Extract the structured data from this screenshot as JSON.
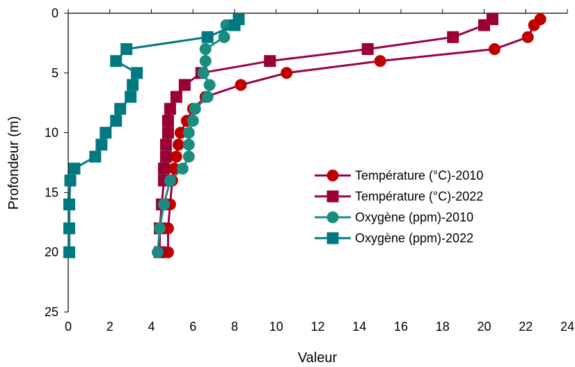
{
  "chart_data": {
    "type": "line",
    "title": "",
    "xlabel": "Valeur",
    "ylabel": "Profondeur (m)",
    "xlim": [
      0,
      24
    ],
    "ylim": [
      0,
      25
    ],
    "y_inverted": true,
    "x_axis_position": "top",
    "x_ticks": [
      "0",
      "2",
      "4",
      "6",
      "8",
      "10",
      "12",
      "14",
      "16",
      "18",
      "20",
      "22",
      "24"
    ],
    "y_ticks": [
      "0",
      "5",
      "10",
      "15",
      "20",
      "25"
    ],
    "grid": false,
    "legend_position": "right",
    "series": [
      {
        "name": "Température (°C)-2010",
        "color": "#C00000",
        "line_color": "#99004C",
        "marker": "circle",
        "points": [
          [
            22.7,
            0.5
          ],
          [
            22.4,
            1
          ],
          [
            22.1,
            2
          ],
          [
            20.5,
            3
          ],
          [
            15.0,
            4
          ],
          [
            10.5,
            5
          ],
          [
            8.3,
            6
          ],
          [
            6.6,
            7
          ],
          [
            6.0,
            8
          ],
          [
            5.7,
            9
          ],
          [
            5.4,
            10
          ],
          [
            5.3,
            11
          ],
          [
            5.2,
            12
          ],
          [
            5.1,
            13
          ],
          [
            5.0,
            14
          ],
          [
            4.9,
            16
          ],
          [
            4.8,
            18
          ],
          [
            4.8,
            20
          ]
        ]
      },
      {
        "name": "Température (°C)-2022",
        "color": "#990033",
        "line_color": "#99004C",
        "marker": "square",
        "points": [
          [
            20.4,
            0.5
          ],
          [
            20.0,
            1
          ],
          [
            18.5,
            2
          ],
          [
            14.4,
            3
          ],
          [
            9.7,
            4
          ],
          [
            6.4,
            5
          ],
          [
            5.6,
            6
          ],
          [
            5.2,
            7
          ],
          [
            4.9,
            8
          ],
          [
            4.8,
            9
          ],
          [
            4.8,
            10
          ],
          [
            4.7,
            11
          ],
          [
            4.7,
            12
          ],
          [
            4.6,
            13
          ],
          [
            4.6,
            14
          ],
          [
            4.5,
            16
          ],
          [
            4.4,
            18
          ],
          [
            4.4,
            20
          ]
        ]
      },
      {
        "name": "Oxygène (ppm)-2010",
        "color": "#1A8C80",
        "line_color": "#1A8C80",
        "marker": "circle",
        "points": [
          [
            8.2,
            0.5
          ],
          [
            7.6,
            1
          ],
          [
            7.5,
            2
          ],
          [
            6.6,
            3
          ],
          [
            6.6,
            4
          ],
          [
            6.5,
            5
          ],
          [
            6.8,
            6
          ],
          [
            6.7,
            7
          ],
          [
            6.1,
            8
          ],
          [
            6.0,
            9
          ],
          [
            5.8,
            10
          ],
          [
            5.8,
            11
          ],
          [
            5.8,
            12
          ],
          [
            5.5,
            13
          ],
          [
            4.9,
            14
          ],
          [
            4.6,
            16
          ],
          [
            4.4,
            18
          ],
          [
            4.3,
            20
          ]
        ]
      },
      {
        "name": "Oxygène (ppm)-2022",
        "color": "#007A80",
        "line_color": "#007A80",
        "marker": "square",
        "points": [
          [
            8.2,
            0.5
          ],
          [
            8.0,
            1
          ],
          [
            6.7,
            2
          ],
          [
            2.8,
            3
          ],
          [
            2.3,
            4
          ],
          [
            3.3,
            5
          ],
          [
            3.1,
            6
          ],
          [
            3.0,
            7
          ],
          [
            2.5,
            8
          ],
          [
            2.3,
            9
          ],
          [
            1.8,
            10
          ],
          [
            1.6,
            11
          ],
          [
            1.3,
            12
          ],
          [
            0.3,
            13
          ],
          [
            0.1,
            14
          ],
          [
            0.05,
            16
          ],
          [
            0.05,
            18
          ],
          [
            0.05,
            20
          ]
        ]
      }
    ]
  }
}
